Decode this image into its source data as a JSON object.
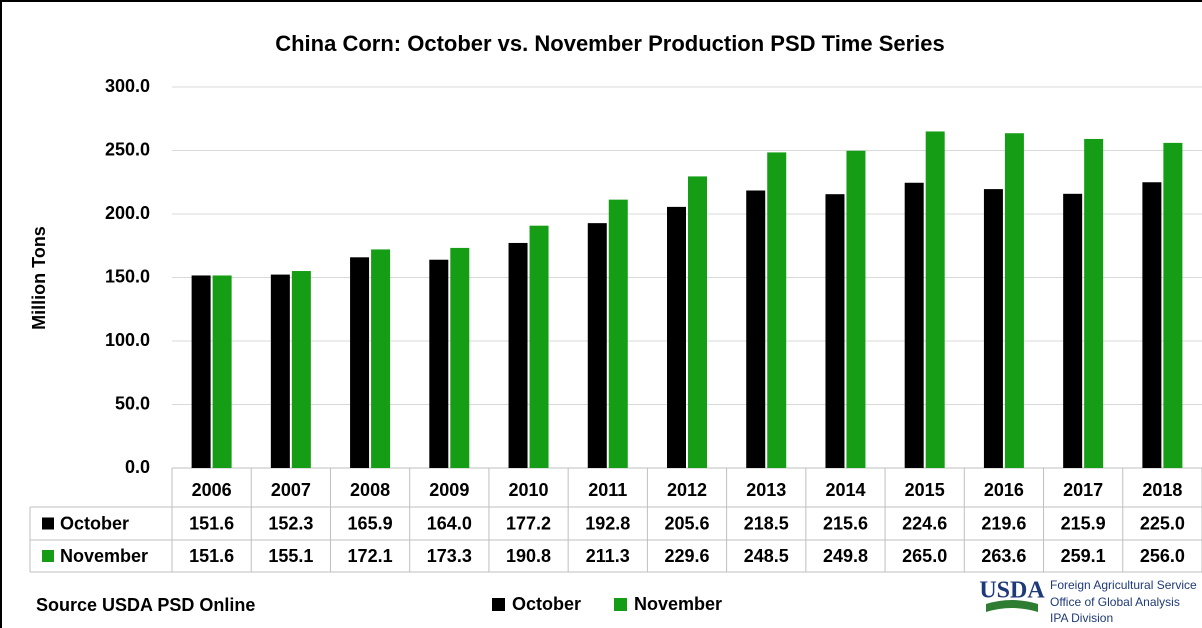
{
  "chart_data": {
    "type": "bar",
    "title": "China Corn:  October vs. November Production PSD Time Series",
    "y_label": "Million Tons",
    "categories": [
      "2006",
      "2007",
      "2008",
      "2009",
      "2010",
      "2011",
      "2012",
      "2013",
      "2014",
      "2015",
      "2016",
      "2017",
      "2018"
    ],
    "series": [
      {
        "name": "October",
        "color": "#000000",
        "values": [
          151.6,
          152.3,
          165.9,
          164.0,
          177.2,
          192.8,
          205.6,
          218.5,
          215.6,
          224.6,
          219.6,
          215.9,
          225.0
        ],
        "value_labels": [
          "151.6",
          "152.3",
          "165.9",
          "164.0",
          "177.2",
          "192.8",
          "205.6",
          "218.5",
          "215.6",
          "224.6",
          "219.6",
          "215.9",
          "225.0"
        ]
      },
      {
        "name": "November",
        "color": "#159e15",
        "values": [
          151.6,
          155.1,
          172.1,
          173.3,
          190.8,
          211.3,
          229.6,
          248.5,
          249.8,
          265.0,
          263.6,
          259.1,
          256.0
        ],
        "value_labels": [
          "151.6",
          "155.1",
          "172.1",
          "173.3",
          "190.8",
          "211.3",
          "229.6",
          "248.5",
          "249.8",
          "265.0",
          "263.6",
          "259.1",
          "256.0"
        ]
      }
    ],
    "ylim": [
      0,
      300
    ],
    "yticks": [
      {
        "value": 0,
        "label": "0.0"
      },
      {
        "value": 50,
        "label": "50.0"
      },
      {
        "value": 100,
        "label": "100.0"
      },
      {
        "value": 150,
        "label": "150.0"
      },
      {
        "value": 200,
        "label": "200.0"
      },
      {
        "value": 250,
        "label": "250.0"
      },
      {
        "value": 300,
        "label": "300.0"
      }
    ],
    "grid": true,
    "source": "Source USDA PSD Online",
    "logo": {
      "mark": "USDA",
      "lines": [
        "Foreign Agricultural Service",
        "Office of Global Analysis",
        "IPA Division"
      ]
    }
  }
}
